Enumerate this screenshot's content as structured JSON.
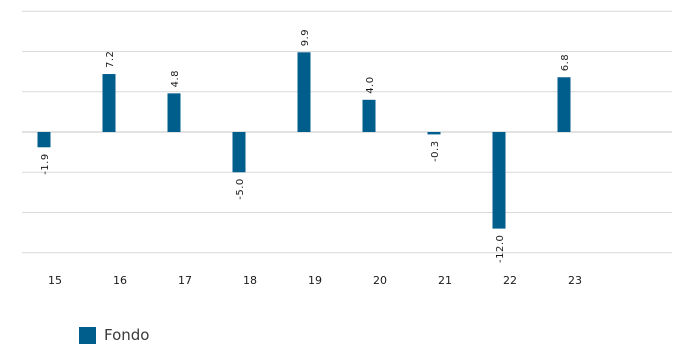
{
  "chart_data": {
    "type": "bar",
    "categories": [
      "15",
      "16",
      "17",
      "18",
      "19",
      "20",
      "21",
      "22",
      "23"
    ],
    "series": [
      {
        "name": "Fondo",
        "values": [
          -1.9,
          7.2,
          4.8,
          -5.0,
          9.9,
          4.0,
          -0.3,
          -12.0,
          6.8
        ]
      }
    ],
    "data_labels": [
      "-1.9",
      "7.2",
      "4.8",
      "-5.0",
      "9.9",
      "4.0",
      "-0.3",
      "-12.0",
      "6.8"
    ],
    "ylim": [
      -15,
      15
    ],
    "gridlines": [
      -15,
      -10,
      -5,
      0,
      5,
      10,
      15
    ],
    "grid": true,
    "legend_position": "bottom-left",
    "colors": {
      "bar": "#005e8d",
      "grid": "#d9d9d9",
      "text": "#1a1a1a"
    }
  },
  "legend": {
    "label": "Fondo"
  }
}
